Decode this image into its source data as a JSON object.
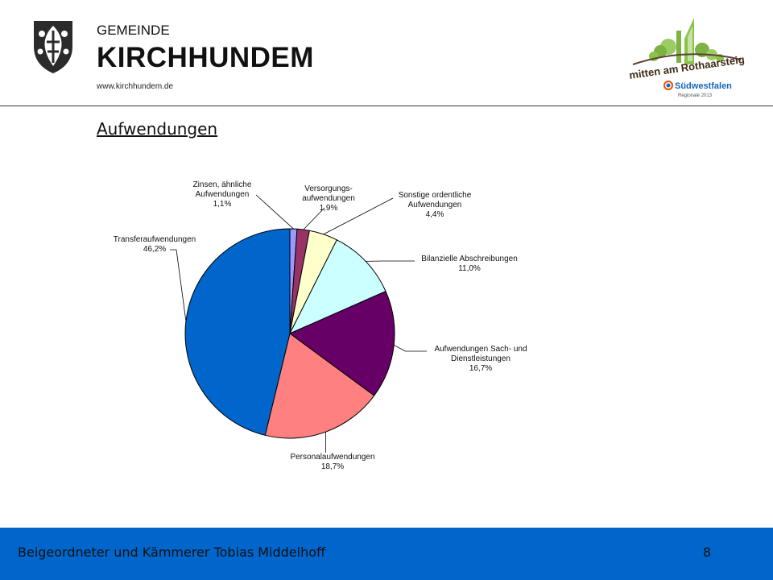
{
  "header": {
    "municipality_label": "GEMEINDE",
    "municipality_name": "KIRCHHUNDEM",
    "website": "www.kirchhundem.de",
    "logo_text_line1": "mitten am Rothaarsteig",
    "logo_text_line2": "Südwestfalen",
    "logo_text_line3": "Regionale 2013"
  },
  "slide": {
    "title": "Aufwendungen"
  },
  "chart_data": {
    "type": "pie",
    "title": "",
    "start_angle_deg": 0,
    "direction": "clockwise",
    "slices": [
      {
        "label": "Zinsen, ähnliche Aufwendungen",
        "label_lines": [
          "Zinsen, ähnliche",
          "Aufwendungen"
        ],
        "value": 1.1,
        "value_label": "1,1%",
        "color": "#9999ff"
      },
      {
        "label": "Versorgungs-aufwendungen",
        "label_lines": [
          "Versorgungs-",
          "aufwendungen"
        ],
        "value": 1.9,
        "value_label": "1,9%",
        "color": "#993366"
      },
      {
        "label": "Sonstige ordentliche Aufwendungen",
        "label_lines": [
          "Sonstige ordentliche",
          "Aufwendungen"
        ],
        "value": 4.4,
        "value_label": "4,4%",
        "color": "#ffffcc"
      },
      {
        "label": "Bilanzielle Abschreibungen",
        "label_lines": [
          "Bilanzielle Abschreibungen"
        ],
        "value": 11.0,
        "value_label": "11,0%",
        "color": "#ccffff"
      },
      {
        "label": "Aufwendungen Sach- und Dienstleistungen",
        "label_lines": [
          "Aufwendungen Sach- und",
          "Dienstleistungen"
        ],
        "value": 16.7,
        "value_label": "16,7%",
        "color": "#660066"
      },
      {
        "label": "Personalaufwendungen",
        "label_lines": [
          "Personalaufwendungen"
        ],
        "value": 18.7,
        "value_label": "18,7%",
        "color": "#ff8080"
      },
      {
        "label": "Transferaufwendungen",
        "label_lines": [
          "Transferaufwendungen"
        ],
        "value": 46.2,
        "value_label": "46,2%",
        "color": "#0066cc"
      }
    ]
  },
  "footer": {
    "presenter": "Beigeordneter und Kämmerer Tobias Middelhoff",
    "page_number": "8",
    "background_color": "#0066cc"
  }
}
